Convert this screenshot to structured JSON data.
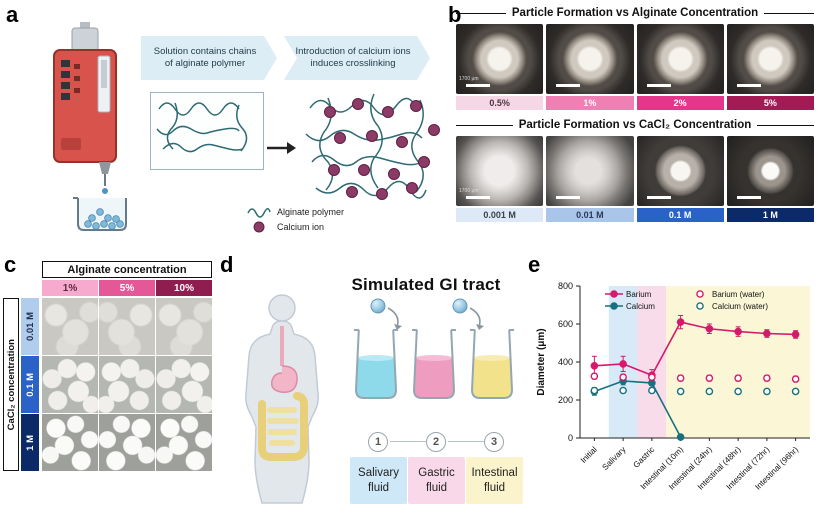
{
  "letters": {
    "a": "a",
    "b": "b",
    "c": "c",
    "d": "d",
    "e": "e"
  },
  "panel_a": {
    "step1": "Solution contains chains of alginate polymer",
    "step2": "Introduction of calcium ions induces crosslinking",
    "legend": [
      {
        "icon": "alginate-squiggle-icon",
        "label": "Alginate polymer"
      },
      {
        "icon": "calcium-ion-icon",
        "label": "Calcium ion"
      }
    ]
  },
  "panel_b": {
    "alginate_title": "Particle Formation vs Alginate Concentration",
    "cacl2_title": "Particle Formation vs CaCl₂ Concentration",
    "scale_text": "1700 μm",
    "alginate_labels": [
      {
        "label": "0.5%",
        "bg": "#f6d7e5",
        "fg": "#4a3540"
      },
      {
        "label": "1%",
        "bg": "#f07fb4",
        "fg": "#ffffff"
      },
      {
        "label": "2%",
        "bg": "#e4378b",
        "fg": "#ffffff"
      },
      {
        "label": "5%",
        "bg": "#a31a55",
        "fg": "#ffffff"
      }
    ],
    "cacl2_labels": [
      {
        "label": "0.001 M",
        "bg": "#dde9f6",
        "fg": "#3a4148"
      },
      {
        "label": "0.01 M",
        "bg": "#a9c6ea",
        "fg": "#2c3a52"
      },
      {
        "label": "0.1 M",
        "bg": "#2a62c8",
        "fg": "#ffffff"
      },
      {
        "label": "1 M",
        "bg": "#0c2a68",
        "fg": "#ffffff"
      }
    ]
  },
  "panel_c": {
    "col_header": "Alginate concentration",
    "row_header": "CaCl₂ concentration",
    "col_labels": [
      {
        "label": "1%",
        "bg": "#f6aacd",
        "fg": "#5c2a42"
      },
      {
        "label": "5%",
        "bg": "#e45898",
        "fg": "#ffffff"
      },
      {
        "label": "10%",
        "bg": "#8e1d50",
        "fg": "#ffffff"
      }
    ],
    "row_labels": [
      {
        "label": "0.01 M",
        "bg": "#b1cdee",
        "fg": "#23304a"
      },
      {
        "label": "0.1 M",
        "bg": "#2a62c8",
        "fg": "#ffffff"
      },
      {
        "label": "1 M",
        "bg": "#0c2a68",
        "fg": "#ffffff"
      }
    ]
  },
  "panel_d": {
    "title": "Simulated GI tract",
    "steps": [
      "1",
      "2",
      "3"
    ],
    "fluids": [
      {
        "label": "Salivary fluid",
        "bg": "#cfe8f8"
      },
      {
        "label": "Gastric fluid",
        "bg": "#f9d9e9"
      },
      {
        "label": "Intestinal fluid",
        "bg": "#fbf3cb"
      }
    ]
  },
  "chart_data": {
    "type": "line",
    "title": "",
    "xlabel": "",
    "ylabel": "Diameter (μm)",
    "ylim": [
      0,
      800
    ],
    "yticks": [
      0,
      200,
      400,
      600,
      800
    ],
    "grid": false,
    "legend_position": "top-inside",
    "legend_order": [
      0,
      2,
      1,
      3
    ],
    "categories": [
      "Initial",
      "Salivary",
      "Gastric",
      "Intestinal (10m)",
      "Intestinal (24hr)",
      "Intestinal (48hr)",
      "Intestinal (72hr)",
      "Intestinal (96hr)"
    ],
    "series": [
      {
        "name": "Barium",
        "color": "#d6196b",
        "marker": "filled",
        "line": true,
        "values": [
          380,
          390,
          330,
          610,
          575,
          560,
          550,
          545
        ],
        "errors": [
          50,
          40,
          30,
          35,
          25,
          25,
          20,
          20
        ]
      },
      {
        "name": "Calcium",
        "color": "#17707e",
        "marker": "filled",
        "line": true,
        "values": [
          245,
          300,
          290,
          5,
          null,
          null,
          null,
          null
        ],
        "errors": [
          20,
          20,
          25,
          5,
          null,
          null,
          null,
          null
        ]
      },
      {
        "name": "Barium (water)",
        "color": "#d6196b",
        "marker": "open",
        "line": false,
        "values": [
          325,
          320,
          320,
          315,
          315,
          315,
          315,
          310
        ],
        "errors": [
          15,
          15,
          15,
          15,
          15,
          15,
          15,
          15
        ]
      },
      {
        "name": "Calcium (water)",
        "color": "#17707e",
        "marker": "open",
        "line": false,
        "values": [
          250,
          250,
          250,
          245,
          245,
          245,
          245,
          245
        ],
        "errors": [
          12,
          12,
          12,
          12,
          12,
          12,
          12,
          12
        ]
      }
    ],
    "bands": [
      {
        "label": "salivary",
        "color": "#d8e9f8",
        "from": 1,
        "to": 2
      },
      {
        "label": "gastric",
        "color": "#f9dcea",
        "from": 2,
        "to": 3
      },
      {
        "label": "intestinal",
        "color": "#fbf7d6",
        "from": 3,
        "to": 8
      }
    ]
  }
}
